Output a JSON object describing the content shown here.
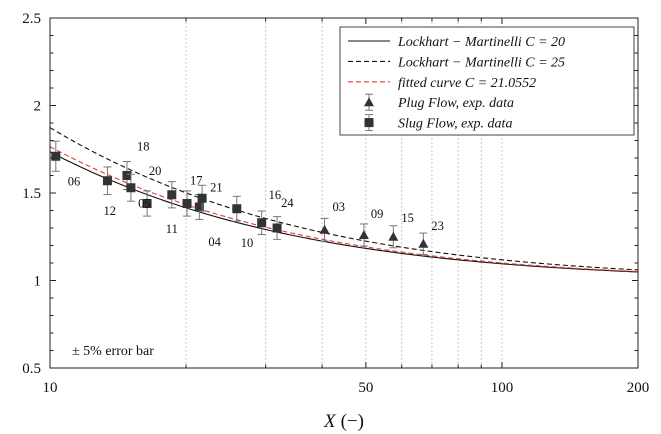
{
  "chart_data": {
    "type": "scatter",
    "xscale": "log",
    "xlim": [
      10,
      200
    ],
    "ylim": [
      0.5,
      2.5
    ],
    "xlabel_var": "X",
    "xlabel_unit": "(−)",
    "xticks": [
      10,
      20,
      30,
      40,
      50,
      60,
      70,
      80,
      90,
      100,
      200
    ],
    "xtick_labels": [
      {
        "value": 10,
        "label": "10"
      },
      {
        "value": 50,
        "label": "50"
      },
      {
        "value": 100,
        "label": "100"
      },
      {
        "value": 200,
        "label": "200"
      }
    ],
    "yticks": [
      {
        "value": 0.5,
        "label": "0.5"
      },
      {
        "value": 1.0,
        "label": "1"
      },
      {
        "value": 1.5,
        "label": "1.5"
      },
      {
        "value": 2.0,
        "label": "2"
      },
      {
        "value": 2.5,
        "label": "2.5"
      }
    ],
    "curves": [
      {
        "name": "Lockhart − Martinelli C = 20",
        "C": 20,
        "color": "#111111",
        "dash": "solid"
      },
      {
        "name": "Lockhart − Martinelli C = 25",
        "C": 25,
        "color": "#111111",
        "dash": "dashed"
      },
      {
        "name": "fitted curve C = 21.0552",
        "C": 21.0552,
        "color": "#e23a3a",
        "dash": "dashed"
      }
    ],
    "series": [
      {
        "name": "Plug Flow, exp. data",
        "marker": "triangle",
        "color": "#333333",
        "points": [
          {
            "x": 40.5,
            "y": 1.29,
            "err": 0.065,
            "label": "03"
          },
          {
            "x": 49.5,
            "y": 1.26,
            "err": 0.063,
            "label": "09"
          },
          {
            "x": 57.5,
            "y": 1.25,
            "err": 0.063,
            "label": "15"
          },
          {
            "x": 67.0,
            "y": 1.21,
            "err": 0.061,
            "label": "23"
          }
        ]
      },
      {
        "name": "Slug Flow, exp. data",
        "marker": "square",
        "color": "#333333",
        "points": [
          {
            "x": 10.3,
            "y": 1.71,
            "err": 0.086,
            "label": "06"
          },
          {
            "x": 13.4,
            "y": 1.57,
            "err": 0.079,
            "label": "12"
          },
          {
            "x": 14.8,
            "y": 1.6,
            "err": 0.08,
            "label": "18"
          },
          {
            "x": 15.1,
            "y": 1.53,
            "err": 0.077,
            "label": "20"
          },
          {
            "x": 16.4,
            "y": 1.44,
            "err": 0.072,
            "label": "05"
          },
          {
            "x": 18.6,
            "y": 1.49,
            "err": 0.075,
            "label": "11"
          },
          {
            "x": 20.1,
            "y": 1.44,
            "err": 0.072,
            "label": "17"
          },
          {
            "x": 21.4,
            "y": 1.42,
            "err": 0.071,
            "label": "04"
          },
          {
            "x": 21.7,
            "y": 1.47,
            "err": 0.074,
            "label": "21"
          },
          {
            "x": 25.9,
            "y": 1.41,
            "err": 0.071,
            "label": "10"
          },
          {
            "x": 29.4,
            "y": 1.33,
            "err": 0.067,
            "label": "16"
          },
          {
            "x": 31.8,
            "y": 1.3,
            "err": 0.065,
            "label": "24"
          }
        ]
      }
    ],
    "annotation": "± 5% error bar",
    "grid": "x-major-and-minor",
    "legend_position": "top-right"
  }
}
